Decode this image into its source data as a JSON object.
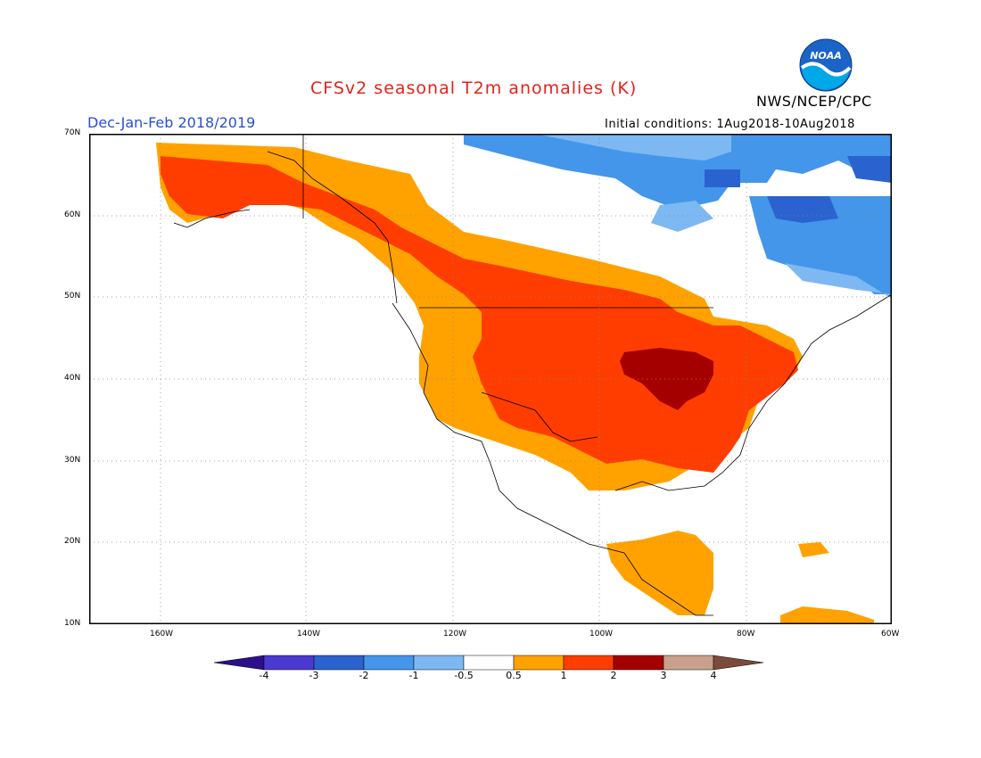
{
  "header": {
    "title": "CFSv2 seasonal T2m anomalies (K)",
    "period": "Dec-Jan-Feb 2018/2019",
    "initial_conditions": "Initial conditions: 1Aug2018-10Aug2018",
    "organization": "NWS/NCEP/CPC",
    "logo_text": "NOAA"
  },
  "map": {
    "lat_labels": [
      "70N",
      "60N",
      "50N",
      "40N",
      "30N",
      "20N",
      "10N"
    ],
    "lon_labels": [
      "160W",
      "140W",
      "120W",
      "100W",
      "80W",
      "60W"
    ],
    "lat_range": [
      10,
      70
    ],
    "lon_range": [
      -172,
      -60
    ],
    "regions": [
      {
        "name": "alaska-warm",
        "level": "1-2"
      },
      {
        "name": "western-us-warm",
        "level": "0.5-1"
      },
      {
        "name": "central-us-warm",
        "level": "1-2"
      },
      {
        "name": "midwest-warm",
        "level": "2-3"
      },
      {
        "name": "northern-canada-cold",
        "level": "-1 to -2"
      },
      {
        "name": "quebec-cold",
        "level": "-2 to -3"
      },
      {
        "name": "central-america-warm",
        "level": "0.5-1"
      }
    ]
  },
  "colorbar": {
    "labels": [
      "-4",
      "-3",
      "-2",
      "-1",
      "-0.5",
      "0.5",
      "1",
      "2",
      "3",
      "4"
    ],
    "colors": [
      "#2c0f8a",
      "#4a3ad2",
      "#2a63cf",
      "#4396ea",
      "#7db8f2",
      "#ffffff",
      "#ffa200",
      "#ff3d00",
      "#a50000",
      "#c9a08c",
      "#7c4b3c"
    ]
  }
}
